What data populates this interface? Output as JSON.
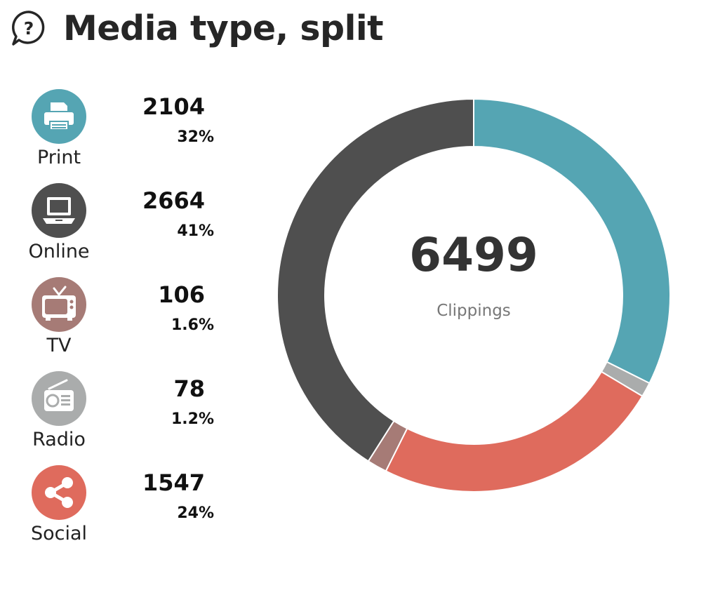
{
  "header": {
    "title": "Media type, split",
    "help_icon": "question-speech-bubble-icon"
  },
  "legend": [
    {
      "id": "print",
      "label": "Print",
      "count": "2104",
      "pct": "32%",
      "color": "#55a5b3",
      "icon": "printer-icon"
    },
    {
      "id": "online",
      "label": "Online",
      "count": "2664",
      "pct": "41%",
      "color": "#4f4f4f",
      "icon": "laptop-icon"
    },
    {
      "id": "tv",
      "label": "TV",
      "count": "106",
      "pct": "1.6%",
      "color": "#a67b76",
      "icon": "tv-icon"
    },
    {
      "id": "radio",
      "label": "Radio",
      "count": "78",
      "pct": "1.2%",
      "color": "#aaacac",
      "icon": "radio-icon"
    },
    {
      "id": "social",
      "label": "Social",
      "count": "1547",
      "pct": "24%",
      "color": "#df6b5d",
      "icon": "share-icon"
    }
  ],
  "chart_data": {
    "type": "pie",
    "donut": true,
    "categories": [
      "Print",
      "Radio",
      "Social",
      "TV",
      "Online"
    ],
    "values": [
      2104,
      78,
      1547,
      106,
      2664
    ],
    "colors": [
      "#55a5b3",
      "#aaacac",
      "#df6b5d",
      "#a67b76",
      "#4f4f4f"
    ],
    "center_value": "6499",
    "center_label": "Clippings"
  }
}
